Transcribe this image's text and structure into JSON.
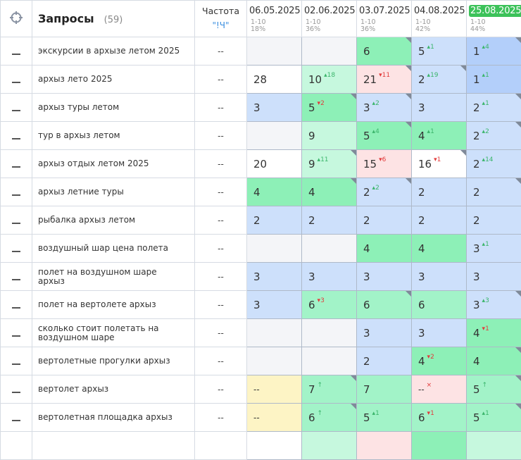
{
  "header": {
    "title": "Запросы",
    "count": "(59)",
    "freq_label": "Частота",
    "freq_value": "\"!Ч\"",
    "dates": [
      {
        "date": "06.05.2025",
        "range": "1-10",
        "pct": "18%"
      },
      {
        "date": "02.06.2025",
        "range": "1-10",
        "pct": "36%"
      },
      {
        "date": "03.07.2025",
        "range": "1-10",
        "pct": "36%"
      },
      {
        "date": "04.08.2025",
        "range": "1-10",
        "pct": "42%"
      },
      {
        "date": "25.08.2025",
        "range": "1-10",
        "pct": "44%",
        "highlight": true
      }
    ]
  },
  "colors": {
    "highlight": "#3cc25a",
    "up": "#3bb56b",
    "down": "#e23b3b",
    "blue": "#cde0fb",
    "green": "#8df0b7",
    "pink": "#fde3e4",
    "yellow": "#fdf4c5"
  },
  "rows": [
    {
      "q": "экскурсии в архызе летом 2025",
      "f": "--",
      "cells": [
        {
          "v": "",
          "c": "gray"
        },
        {
          "v": "",
          "c": "gray"
        },
        {
          "v": "6",
          "c": "green",
          "k": 1
        },
        {
          "v": "5",
          "d": "1",
          "t": "up",
          "c": "blue"
        },
        {
          "v": "1",
          "d": "4",
          "t": "up",
          "c": "dblue",
          "k": 1
        }
      ]
    },
    {
      "q": "архыз лето 2025",
      "f": "--",
      "cells": [
        {
          "v": "28",
          "c": "white"
        },
        {
          "v": "10",
          "d": "18",
          "t": "up",
          "c": "lgreen"
        },
        {
          "v": "21",
          "d": "11",
          "t": "down",
          "c": "pink",
          "k": 1
        },
        {
          "v": "2",
          "d": "19",
          "t": "up",
          "c": "blue",
          "k": 1
        },
        {
          "v": "1",
          "d": "1",
          "t": "up",
          "c": "dblue"
        }
      ]
    },
    {
      "q": "архыз туры летом",
      "f": "--",
      "cells": [
        {
          "v": "3",
          "c": "blue"
        },
        {
          "v": "5",
          "d": "2",
          "t": "down",
          "c": "green",
          "k": 1
        },
        {
          "v": "3",
          "d": "2",
          "t": "up",
          "c": "blue",
          "k": 1
        },
        {
          "v": "3",
          "c": "blue"
        },
        {
          "v": "2",
          "d": "1",
          "t": "up",
          "c": "blue",
          "k": 1
        }
      ]
    },
    {
      "q": "тур в архыз летом",
      "f": "--",
      "cells": [
        {
          "v": "",
          "c": "gray"
        },
        {
          "v": "9",
          "c": "lgreen"
        },
        {
          "v": "5",
          "d": "4",
          "t": "up",
          "c": "green",
          "k": 1
        },
        {
          "v": "4",
          "d": "1",
          "t": "up",
          "c": "green"
        },
        {
          "v": "2",
          "d": "2",
          "t": "up",
          "c": "blue",
          "k": 1
        }
      ]
    },
    {
      "q": "архыз отдых летом 2025",
      "f": "--",
      "cells": [
        {
          "v": "20",
          "c": "white"
        },
        {
          "v": "9",
          "d": "11",
          "t": "up",
          "c": "lgreen",
          "k": 1
        },
        {
          "v": "15",
          "d": "6",
          "t": "down",
          "c": "pink"
        },
        {
          "v": "16",
          "d": "1",
          "t": "down",
          "c": "white",
          "k": 1
        },
        {
          "v": "2",
          "d": "14",
          "t": "up",
          "c": "blue"
        }
      ]
    },
    {
      "q": "архыз летние туры",
      "f": "--",
      "cells": [
        {
          "v": "4",
          "c": "green"
        },
        {
          "v": "4",
          "c": "green",
          "k": 1
        },
        {
          "v": "2",
          "d": "2",
          "t": "up",
          "c": "blue",
          "k": 1
        },
        {
          "v": "2",
          "c": "blue"
        },
        {
          "v": "2",
          "c": "blue",
          "k": 1
        }
      ]
    },
    {
      "q": "рыбалка архыз летом",
      "f": "--",
      "cells": [
        {
          "v": "2",
          "c": "blue"
        },
        {
          "v": "2",
          "c": "blue"
        },
        {
          "v": "2",
          "c": "blue"
        },
        {
          "v": "2",
          "c": "blue"
        },
        {
          "v": "2",
          "c": "blue"
        }
      ]
    },
    {
      "q": "воздушный шар цена полета",
      "f": "--",
      "cells": [
        {
          "v": "",
          "c": "gray"
        },
        {
          "v": "",
          "c": "gray"
        },
        {
          "v": "4",
          "c": "green"
        },
        {
          "v": "4",
          "c": "green"
        },
        {
          "v": "3",
          "d": "1",
          "t": "up",
          "c": "blue"
        }
      ]
    },
    {
      "q": "полет на воздушном шаре архыз",
      "f": "--",
      "cells": [
        {
          "v": "3",
          "c": "blue"
        },
        {
          "v": "3",
          "c": "blue"
        },
        {
          "v": "3",
          "c": "blue"
        },
        {
          "v": "3",
          "c": "blue"
        },
        {
          "v": "3",
          "c": "blue"
        }
      ]
    },
    {
      "q": "полет на вертолете архыз",
      "f": "--",
      "cells": [
        {
          "v": "3",
          "c": "blue"
        },
        {
          "v": "6",
          "d": "3",
          "t": "down",
          "c": "mgreen"
        },
        {
          "v": "6",
          "c": "mgreen",
          "k": 1
        },
        {
          "v": "6",
          "c": "mgreen"
        },
        {
          "v": "3",
          "d": "3",
          "t": "up",
          "c": "blue",
          "k": 1
        }
      ]
    },
    {
      "q": "сколько стоит полетать на воздушном шаре",
      "f": "--",
      "cells": [
        {
          "v": "",
          "c": "gray"
        },
        {
          "v": "",
          "c": "gray"
        },
        {
          "v": "3",
          "c": "blue"
        },
        {
          "v": "3",
          "c": "blue"
        },
        {
          "v": "4",
          "d": "1",
          "t": "down",
          "c": "green"
        }
      ]
    },
    {
      "q": "вертолетные прогулки архыз",
      "f": "--",
      "cells": [
        {
          "v": "",
          "c": "gray"
        },
        {
          "v": "",
          "c": "gray"
        },
        {
          "v": "2",
          "c": "blue"
        },
        {
          "v": "4",
          "d": "2",
          "t": "down",
          "c": "green"
        },
        {
          "v": "4",
          "c": "green",
          "k": 1
        }
      ]
    },
    {
      "q": "вертолет архыз",
      "f": "--",
      "cells": [
        {
          "v": "--",
          "c": "yellow"
        },
        {
          "v": "7",
          "d": "",
          "t": "new",
          "c": "mgreen",
          "k": 1
        },
        {
          "v": "7",
          "c": "mgreen"
        },
        {
          "v": "--",
          "d": "",
          "t": "lost",
          "c": "pink"
        },
        {
          "v": "5",
          "d": "",
          "t": "new",
          "c": "mgreen",
          "k": 1
        }
      ]
    },
    {
      "q": "вертолетная площадка архыз",
      "f": "--",
      "cells": [
        {
          "v": "--",
          "c": "yellow"
        },
        {
          "v": "6",
          "d": "",
          "t": "new",
          "c": "mgreen",
          "k": 1
        },
        {
          "v": "5",
          "d": "1",
          "t": "up",
          "c": "mgreen"
        },
        {
          "v": "6",
          "d": "1",
          "t": "down",
          "c": "mgreen"
        },
        {
          "v": "5",
          "d": "1",
          "t": "up",
          "c": "mgreen",
          "k": 1
        }
      ]
    },
    {
      "q": "",
      "f": "",
      "cells": [
        {
          "v": "",
          "c": "white"
        },
        {
          "v": "",
          "c": "lgreen"
        },
        {
          "v": "",
          "c": "pink"
        },
        {
          "v": "",
          "c": "green"
        },
        {
          "v": "",
          "c": "lgreen"
        }
      ]
    }
  ]
}
